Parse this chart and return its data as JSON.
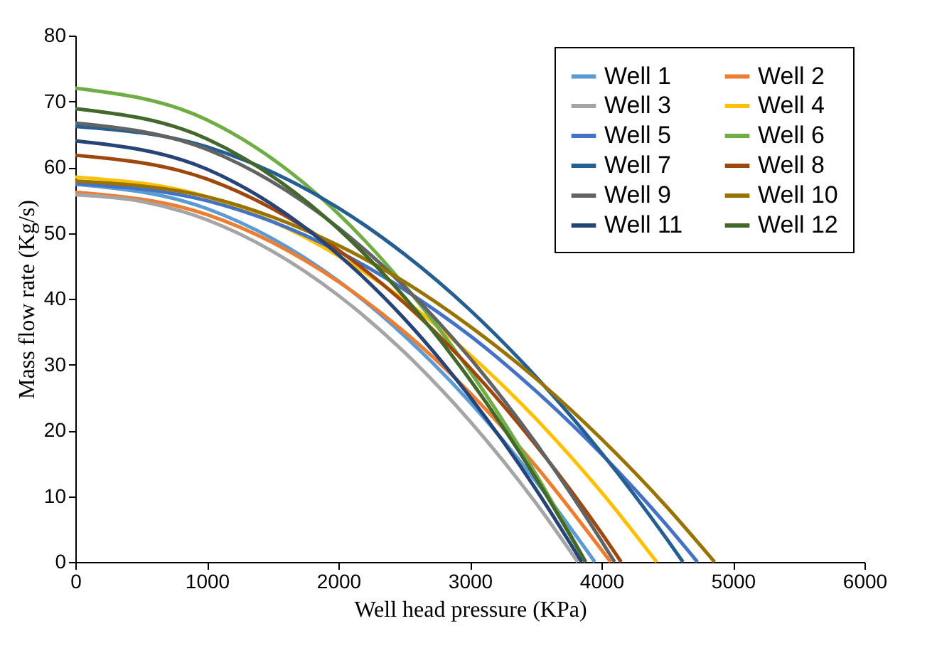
{
  "chart_data": {
    "type": "line",
    "xlabel": "Well head pressure (KPa)",
    "ylabel": "Mass flow rate (Kg/s)",
    "xlim": [
      0,
      6000
    ],
    "xticks": [
      0,
      1000,
      2000,
      3000,
      4000,
      5000,
      6000
    ],
    "ylim": [
      0,
      80
    ],
    "yticks": [
      0,
      10,
      20,
      30,
      40,
      50,
      60,
      70,
      80
    ],
    "grid": false,
    "legend": "top right",
    "marker": "none",
    "line_style": "solid",
    "series": [
      {
        "name": "Well 1",
        "color": "#5b9bd5",
        "x": [
          0,
          1000,
          2000,
          2500,
          3000,
          3500,
          3950
        ],
        "values": [
          57.4,
          53.7,
          42.7,
          34.4,
          24.3,
          12.3,
          0
        ]
      },
      {
        "name": "Well 2",
        "color": "#ed7d31",
        "x": [
          0,
          1000,
          2000,
          2500,
          3000,
          3500,
          4070
        ],
        "values": [
          56.2,
          52.8,
          42.6,
          35.0,
          25.7,
          14.6,
          0
        ]
      },
      {
        "name": "Well 3",
        "color": "#a5a5a5",
        "x": [
          0,
          500,
          1000,
          1500,
          2000,
          2500,
          3000,
          3500,
          3820
        ],
        "values": [
          55.8,
          54.8,
          52.0,
          47.2,
          40.5,
          31.9,
          21.4,
          9.0,
          0
        ]
      },
      {
        "name": "Well 4",
        "color": "#ffc000",
        "x": [
          0,
          1000,
          2000,
          2500,
          3000,
          3500,
          4000,
          4420
        ],
        "values": [
          58.5,
          55.5,
          46.5,
          39.8,
          31.5,
          21.8,
          10.6,
          0
        ]
      },
      {
        "name": "Well 5",
        "color": "#4472c4",
        "x": [
          0,
          1000,
          2000,
          2500,
          3000,
          3500,
          4000,
          4500,
          4730
        ],
        "values": [
          57.5,
          54.9,
          47.2,
          41.4,
          34.4,
          26.0,
          16.4,
          5.5,
          0
        ]
      },
      {
        "name": "Well 6",
        "color": "#70ad47",
        "x": [
          0,
          1000,
          2000,
          2500,
          3000,
          3500,
          3880
        ],
        "values": [
          72.0,
          67.2,
          52.9,
          42.1,
          29.0,
          13.4,
          0
        ]
      },
      {
        "name": "Well 7",
        "color": "#255e91",
        "x": [
          0,
          1000,
          2000,
          2500,
          3000,
          3500,
          4000,
          4500,
          4620
        ],
        "values": [
          66.2,
          63.1,
          53.8,
          46.8,
          38.3,
          28.2,
          16.6,
          3.4,
          0
        ]
      },
      {
        "name": "Well 8",
        "color": "#9e480e",
        "x": [
          0,
          1000,
          2000,
          2500,
          3000,
          3500,
          4000,
          4150
        ],
        "values": [
          61.8,
          58.2,
          47.4,
          39.4,
          29.5,
          17.8,
          4.4,
          0
        ]
      },
      {
        "name": "Well 9",
        "color": "#636363",
        "x": [
          0,
          1000,
          2000,
          2500,
          3000,
          3500,
          4000,
          4100
        ],
        "values": [
          66.7,
          62.7,
          50.8,
          41.9,
          31.0,
          18.1,
          3.2,
          0
        ]
      },
      {
        "name": "Well 10",
        "color": "#997300",
        "x": [
          0,
          1000,
          2000,
          2500,
          3000,
          3500,
          4000,
          4500,
          4860
        ],
        "values": [
          57.9,
          55.5,
          48.1,
          42.6,
          35.8,
          27.9,
          18.7,
          8.3,
          0
        ]
      },
      {
        "name": "Well 11",
        "color": "#264478",
        "x": [
          0,
          1000,
          2000,
          2500,
          3000,
          3500,
          3850
        ],
        "values": [
          64.0,
          59.7,
          46.7,
          37.0,
          25.1,
          11.1,
          0
        ]
      },
      {
        "name": "Well 12",
        "color": "#43682b",
        "x": [
          0,
          1000,
          2000,
          2500,
          3000,
          3500,
          3880
        ],
        "values": [
          68.9,
          64.3,
          50.6,
          40.3,
          27.7,
          12.8,
          0
        ]
      }
    ]
  }
}
